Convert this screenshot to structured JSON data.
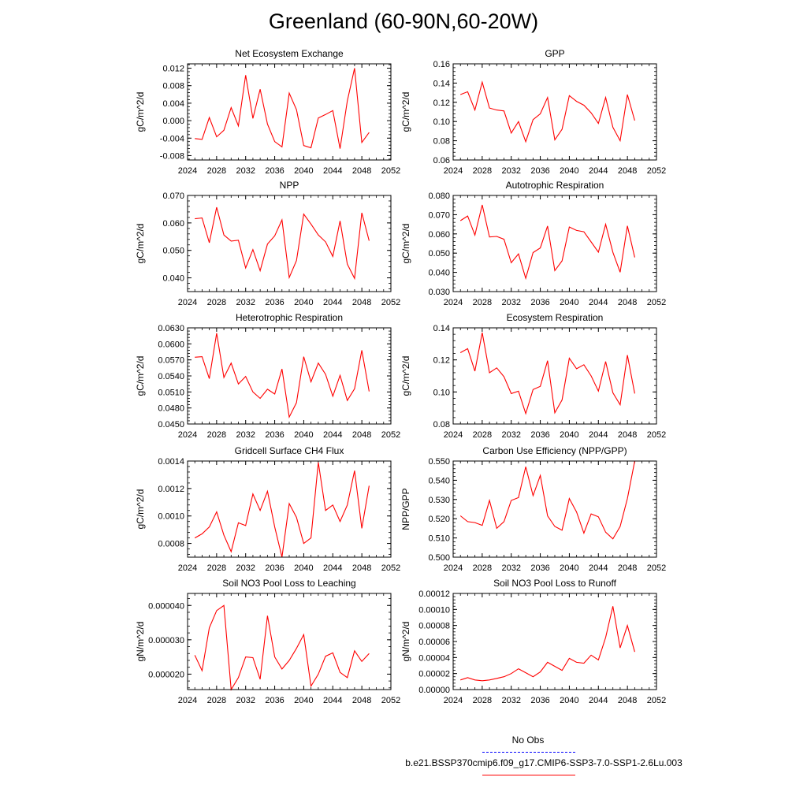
{
  "title": "Greenland (60-90N,60-20W)",
  "colors": {
    "model": "#ff0000",
    "obs": "#0000ff",
    "axis": "#000000"
  },
  "legend": {
    "obs_label": "No Obs",
    "model_label": "b.e21.BSSP370cmip6.f09_g17.CMIP6-SSP3-7.0-SSP1-2.6Lu.003"
  },
  "chart_data": [
    {
      "type": "line",
      "title": "Net Ecosystem Exchange",
      "ylabel": "gC/m^2/d",
      "xlim": [
        2024,
        2052
      ],
      "ylim": [
        -0.009,
        0.013
      ],
      "xticks": [
        "2024",
        "2028",
        "2032",
        "2036",
        "2040",
        "2044",
        "2048",
        "2052"
      ],
      "yticks": [
        "-0.008",
        "-0.004",
        "0.000",
        "0.004",
        "0.008",
        "0.012"
      ],
      "x": [
        2025,
        2026,
        2027,
        2028,
        2029,
        2030,
        2031,
        2032,
        2033,
        2034,
        2035,
        2036,
        2037,
        2038,
        2039,
        2040,
        2041,
        2042,
        2043,
        2044,
        2045,
        2046,
        2047,
        2048,
        2049
      ],
      "series": [
        {
          "values": [
            -0.0041,
            -0.0043,
            0.0007,
            -0.0037,
            -0.0022,
            0.003,
            -0.0012,
            0.0104,
            0.0005,
            0.0072,
            -0.0008,
            -0.0048,
            -0.006,
            0.0063,
            0.0025,
            -0.0057,
            -0.0062,
            0.0006,
            0.0014,
            0.0023,
            -0.0064,
            0.0045,
            0.012,
            -0.005,
            -0.0027
          ]
        }
      ]
    },
    {
      "type": "line",
      "title": "GPP",
      "ylabel": "gC/m^2/d",
      "xlim": [
        2024,
        2052
      ],
      "ylim": [
        0.06,
        0.16
      ],
      "xticks": [
        "2024",
        "2028",
        "2032",
        "2036",
        "2040",
        "2044",
        "2048",
        "2052"
      ],
      "yticks": [
        "0.06",
        "0.08",
        "0.10",
        "0.12",
        "0.14",
        "0.16"
      ],
      "x": [
        2025,
        2026,
        2027,
        2028,
        2029,
        2030,
        2031,
        2032,
        2033,
        2034,
        2035,
        2036,
        2037,
        2038,
        2039,
        2040,
        2041,
        2042,
        2043,
        2044,
        2045,
        2046,
        2047,
        2048,
        2049
      ],
      "series": [
        {
          "values": [
            0.128,
            0.131,
            0.112,
            0.141,
            0.114,
            0.112,
            0.111,
            0.088,
            0.1,
            0.079,
            0.102,
            0.108,
            0.125,
            0.081,
            0.092,
            0.127,
            0.121,
            0.117,
            0.109,
            0.098,
            0.125,
            0.094,
            0.08,
            0.128,
            0.101
          ]
        }
      ]
    },
    {
      "type": "line",
      "title": "NPP",
      "ylabel": "gC/m^2/d",
      "xlim": [
        2024,
        2052
      ],
      "ylim": [
        0.035,
        0.07
      ],
      "xticks": [
        "2024",
        "2028",
        "2032",
        "2036",
        "2040",
        "2044",
        "2048",
        "2052"
      ],
      "yticks": [
        "0.040",
        "0.050",
        "0.060",
        "0.070"
      ],
      "x": [
        2025,
        2026,
        2027,
        2028,
        2029,
        2030,
        2031,
        2032,
        2033,
        2034,
        2035,
        2036,
        2037,
        2038,
        2039,
        2040,
        2041,
        2042,
        2043,
        2044,
        2045,
        2046,
        2047,
        2048,
        2049
      ],
      "series": [
        {
          "values": [
            0.0615,
            0.0618,
            0.0528,
            0.0657,
            0.0556,
            0.0534,
            0.0537,
            0.0436,
            0.0503,
            0.0426,
            0.0523,
            0.0553,
            0.0611,
            0.0401,
            0.0463,
            0.0632,
            0.0596,
            0.0556,
            0.0531,
            0.0478,
            0.0607,
            0.045,
            0.0398,
            0.0637,
            0.0535
          ]
        }
      ]
    },
    {
      "type": "line",
      "title": "Autotrophic Respiration",
      "ylabel": "gC/m^2/d",
      "xlim": [
        2024,
        2052
      ],
      "ylim": [
        0.03,
        0.08
      ],
      "xticks": [
        "2024",
        "2028",
        "2032",
        "2036",
        "2040",
        "2044",
        "2048",
        "2052"
      ],
      "yticks": [
        "0.030",
        "0.040",
        "0.050",
        "0.060",
        "0.070",
        "0.080"
      ],
      "x": [
        2025,
        2026,
        2027,
        2028,
        2029,
        2030,
        2031,
        2032,
        2033,
        2034,
        2035,
        2036,
        2037,
        2038,
        2039,
        2040,
        2041,
        2042,
        2043,
        2044,
        2045,
        2046,
        2047,
        2048,
        2049
      ],
      "series": [
        {
          "values": [
            0.0669,
            0.0693,
            0.0594,
            0.0751,
            0.0584,
            0.0587,
            0.0572,
            0.045,
            0.0496,
            0.0369,
            0.0503,
            0.0527,
            0.0641,
            0.0409,
            0.046,
            0.0636,
            0.0618,
            0.0611,
            0.0558,
            0.0505,
            0.065,
            0.0504,
            0.0401,
            0.0642,
            0.0478
          ]
        }
      ]
    },
    {
      "type": "line",
      "title": "Heterotrophic Respiration",
      "ylabel": "gC/m^2/d",
      "xlim": [
        2024,
        2052
      ],
      "ylim": [
        0.045,
        0.063
      ],
      "xticks": [
        "2024",
        "2028",
        "2032",
        "2036",
        "2040",
        "2044",
        "2048",
        "2052"
      ],
      "yticks": [
        "0.0450",
        "0.0480",
        "0.0510",
        "0.0540",
        "0.0570",
        "0.0600",
        "0.0630"
      ],
      "x": [
        2025,
        2026,
        2027,
        2028,
        2029,
        2030,
        2031,
        2032,
        2033,
        2034,
        2035,
        2036,
        2037,
        2038,
        2039,
        2040,
        2041,
        2042,
        2043,
        2044,
        2045,
        2046,
        2047,
        2048,
        2049
      ],
      "series": [
        {
          "values": [
            0.0575,
            0.0576,
            0.0535,
            0.062,
            0.0537,
            0.0564,
            0.0525,
            0.0539,
            0.051,
            0.0498,
            0.0515,
            0.0506,
            0.0553,
            0.0463,
            0.049,
            0.0576,
            0.0529,
            0.0564,
            0.0543,
            0.0502,
            0.0541,
            0.0494,
            0.0516,
            0.0588,
            0.0511
          ]
        }
      ]
    },
    {
      "type": "line",
      "title": "Ecosystem Respiration",
      "ylabel": "gC/m^2/d",
      "xlim": [
        2024,
        2052
      ],
      "ylim": [
        0.08,
        0.14
      ],
      "xticks": [
        "2024",
        "2028",
        "2032",
        "2036",
        "2040",
        "2044",
        "2048",
        "2052"
      ],
      "yticks": [
        "0.08",
        "0.10",
        "0.12",
        "0.14"
      ],
      "x": [
        2025,
        2026,
        2027,
        2028,
        2029,
        2030,
        2031,
        2032,
        2033,
        2034,
        2035,
        2036,
        2037,
        2038,
        2039,
        2040,
        2041,
        2042,
        2043,
        2044,
        2045,
        2046,
        2047,
        2048,
        2049
      ],
      "series": [
        {
          "values": [
            0.1245,
            0.127,
            0.113,
            0.137,
            0.112,
            0.115,
            0.1095,
            0.099,
            0.1005,
            0.0865,
            0.1015,
            0.1035,
            0.1195,
            0.087,
            0.095,
            0.121,
            0.1145,
            0.117,
            0.11,
            0.1005,
            0.119,
            0.0995,
            0.092,
            0.123,
            0.099
          ]
        }
      ]
    },
    {
      "type": "line",
      "title": "Gridcell Surface CH4 Flux",
      "ylabel": "gC/m^2/d",
      "xlim": [
        2024,
        2052
      ],
      "ylim": [
        0.0007,
        0.0014
      ],
      "xticks": [
        "2024",
        "2028",
        "2032",
        "2036",
        "2040",
        "2044",
        "2048",
        "2052"
      ],
      "yticks": [
        "0.0008",
        "0.0010",
        "0.0012",
        "0.0014"
      ],
      "x": [
        2025,
        2026,
        2027,
        2028,
        2029,
        2030,
        2031,
        2032,
        2033,
        2034,
        2035,
        2036,
        2037,
        2038,
        2039,
        2040,
        2041,
        2042,
        2043,
        2044,
        2045,
        2046,
        2047,
        2048,
        2049
      ],
      "series": [
        {
          "values": [
            0.00084,
            0.00087,
            0.00092,
            0.00103,
            0.00086,
            0.00074,
            0.00095,
            0.00093,
            0.00116,
            0.00104,
            0.00118,
            0.00092,
            0.0007,
            0.00109,
            0.00099,
            0.0008,
            0.00084,
            0.00139,
            0.00104,
            0.00108,
            0.00096,
            0.00108,
            0.00133,
            0.00091,
            0.00122
          ]
        }
      ]
    },
    {
      "type": "line",
      "title": "Carbon Use Efficiency (NPP/GPP)",
      "ylabel": "NPP/GPP",
      "xlim": [
        2024,
        2052
      ],
      "ylim": [
        0.5,
        0.55
      ],
      "xticks": [
        "2024",
        "2028",
        "2032",
        "2036",
        "2040",
        "2044",
        "2048",
        "2052"
      ],
      "yticks": [
        "0.500",
        "0.510",
        "0.520",
        "0.530",
        "0.540",
        "0.550"
      ],
      "x": [
        2025,
        2026,
        2027,
        2028,
        2029,
        2030,
        2031,
        2032,
        2033,
        2034,
        2035,
        2036,
        2037,
        2038,
        2039,
        2040,
        2041,
        2042,
        2043,
        2044,
        2045,
        2046,
        2047,
        2048,
        2049
      ],
      "series": [
        {
          "values": [
            0.5215,
            0.5185,
            0.518,
            0.5165,
            0.5295,
            0.515,
            0.5185,
            0.5295,
            0.531,
            0.547,
            0.532,
            0.5425,
            0.5215,
            0.516,
            0.514,
            0.5305,
            0.5235,
            0.5125,
            0.5225,
            0.521,
            0.513,
            0.5095,
            0.516,
            0.5305,
            0.55
          ]
        }
      ]
    },
    {
      "type": "line",
      "title": "Soil NO3 Pool Loss to Leaching",
      "ylabel": "gN/m^2/d",
      "xlim": [
        2024,
        2052
      ],
      "ylim": [
        1.55e-05,
        4.35e-05
      ],
      "xticks": [
        "2024",
        "2028",
        "2032",
        "2036",
        "2040",
        "2044",
        "2048",
        "2052"
      ],
      "yticks": [
        "0.000020",
        "0.000030",
        "0.000040"
      ],
      "x": [
        2025,
        2026,
        2027,
        2028,
        2029,
        2030,
        2031,
        2032,
        2033,
        2034,
        2035,
        2036,
        2037,
        2038,
        2039,
        2040,
        2041,
        2042,
        2043,
        2044,
        2045,
        2046,
        2047,
        2048,
        2049
      ],
      "series": [
        {
          "values": [
            2.55e-05,
            2.1e-05,
            3.35e-05,
            3.85e-05,
            4e-05,
            1.55e-05,
            1.9e-05,
            2.5e-05,
            2.48e-05,
            1.85e-05,
            3.7e-05,
            2.5e-05,
            2.15e-05,
            2.4e-05,
            2.75e-05,
            3.15e-05,
            1.65e-05,
            2e-05,
            2.52e-05,
            2.62e-05,
            2.05e-05,
            1.9e-05,
            2.68e-05,
            2.37e-05,
            2.6e-05
          ]
        }
      ]
    },
    {
      "type": "line",
      "title": "Soil NO3 Pool Loss to Runoff",
      "ylabel": "gN/m^2/d",
      "xlim": [
        2024,
        2052
      ],
      "ylim": [
        0.0,
        0.00012
      ],
      "xticks": [
        "2024",
        "2028",
        "2032",
        "2036",
        "2040",
        "2044",
        "2048",
        "2052"
      ],
      "yticks": [
        "0.00000",
        "0.00002",
        "0.00004",
        "0.00006",
        "0.00008",
        "0.00010",
        "0.00012"
      ],
      "x": [
        2025,
        2026,
        2027,
        2028,
        2029,
        2030,
        2031,
        2032,
        2033,
        2034,
        2035,
        2036,
        2037,
        2038,
        2039,
        2040,
        2041,
        2042,
        2043,
        2044,
        2045,
        2046,
        2047,
        2048,
        2049
      ],
      "series": [
        {
          "values": [
            1.2e-05,
            1.5e-05,
            1.2e-05,
            1.1e-05,
            1.2e-05,
            1.4e-05,
            1.6e-05,
            2e-05,
            2.6e-05,
            2.1e-05,
            1.6e-05,
            2.2e-05,
            3.4e-05,
            2.9e-05,
            2.4e-05,
            3.9e-05,
            3.4e-05,
            3.3e-05,
            4.3e-05,
            3.7e-05,
            6.5e-05,
            0.000104,
            5.2e-05,
            8e-05,
            4.7e-05
          ]
        }
      ]
    }
  ]
}
